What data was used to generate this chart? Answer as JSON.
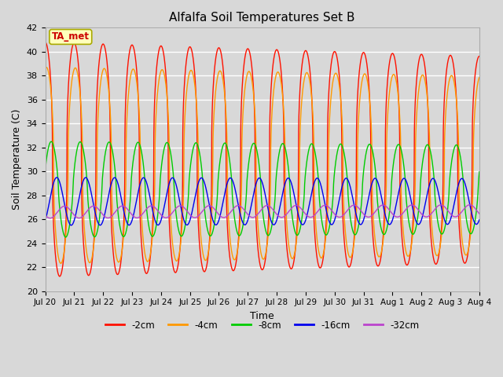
{
  "title": "Alfalfa Soil Temperatures Set B",
  "xlabel": "Time",
  "ylabel": "Soil Temperature (C)",
  "ylim": [
    20,
    42
  ],
  "yticks": [
    20,
    22,
    24,
    26,
    28,
    30,
    32,
    34,
    36,
    38,
    40,
    42
  ],
  "fig_width": 6.4,
  "fig_height": 4.8,
  "dpi": 100,
  "background_color": "#d8d8d8",
  "plot_bg_color": "#d8d8d8",
  "line_colors": {
    "-2cm": "#ff1100",
    "-4cm": "#ff9900",
    "-8cm": "#00cc00",
    "-16cm": "#0000ee",
    "-32cm": "#bb44cc"
  },
  "legend_labels": [
    "-2cm",
    "-4cm",
    "-8cm",
    "-16cm",
    "-32cm"
  ],
  "annotation_text": "TA_met",
  "annotation_color": "#cc0000",
  "annotation_bg": "#ffffbb",
  "n_days": 15,
  "points_per_day": 288,
  "x_tick_labels": [
    "Jul 20",
    "Jul 21",
    "Jul 22",
    "Jul 23",
    "Jul 24",
    "Jul 25",
    "Jul 26",
    "Jul 27",
    "Jul 28",
    "Jul 29",
    "Jul 30",
    "Jul 31",
    "Aug 1",
    "Aug 2",
    "Aug 3",
    "Aug 4"
  ],
  "x_tick_positions": [
    0,
    1,
    2,
    3,
    4,
    5,
    6,
    7,
    8,
    9,
    10,
    11,
    12,
    13,
    14,
    15
  ]
}
